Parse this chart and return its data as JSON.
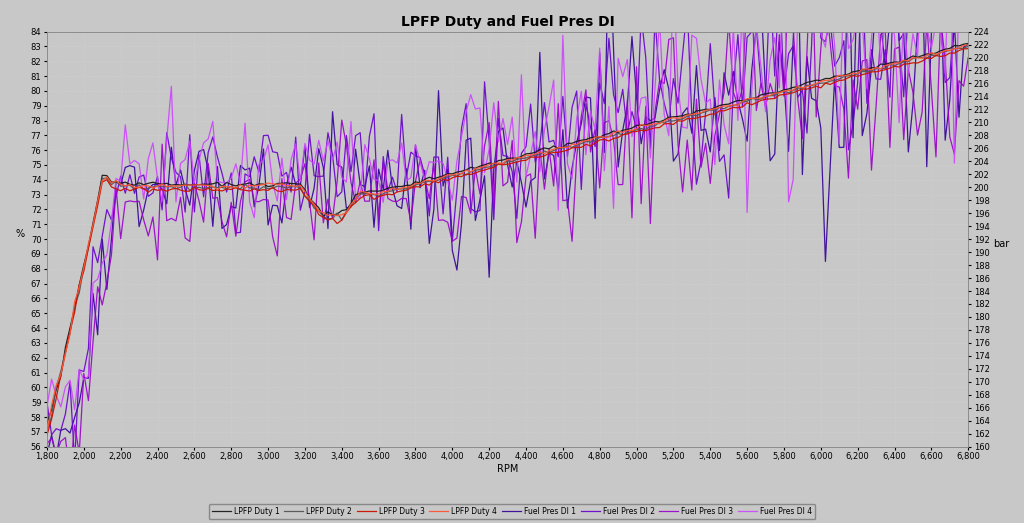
{
  "title": "LPFP Duty and Fuel Pres DI",
  "xlabel": "RPM",
  "ylabel_left": "%",
  "ylabel_right": "bar",
  "xlim": [
    1800,
    6800
  ],
  "ylim_left": [
    56,
    84
  ],
  "ylim_right": [
    160,
    224
  ],
  "background_color": "#c8c8c8",
  "grid_color": "#d8d8d8",
  "lpfp_colors": [
    "#1a1a1a",
    "#555555",
    "#cc1100",
    "#ff5533"
  ],
  "di_colors": [
    "#330099",
    "#6600cc",
    "#9900cc",
    "#cc44ff"
  ],
  "legend_labels": [
    "LPFP Duty 1",
    "LPFP Duty 2",
    "LPFP Duty 3",
    "LPFP Duty 4",
    "Fuel Pres DI 1",
    "Fuel Pres DI 2",
    "Fuel Pres DI 3",
    "Fuel Pres DI 4"
  ],
  "yticks_left": [
    56,
    57,
    58,
    59,
    60,
    61,
    62,
    63,
    64,
    65,
    66,
    67,
    68,
    69,
    70,
    71,
    72,
    73,
    74,
    75,
    76,
    77,
    78,
    79,
    80,
    81,
    82,
    83,
    84
  ],
  "yticks_right": [
    160,
    162,
    164,
    166,
    168,
    170,
    172,
    174,
    176,
    178,
    180,
    182,
    184,
    186,
    188,
    190,
    192,
    194,
    196,
    198,
    200,
    202,
    204,
    206,
    208,
    210,
    212,
    214,
    216,
    218,
    220,
    222,
    224
  ],
  "xticks": [
    1800,
    2000,
    2200,
    2400,
    2600,
    2800,
    3000,
    3200,
    3400,
    3600,
    3800,
    4000,
    4200,
    4400,
    4600,
    4800,
    5000,
    5200,
    5400,
    5600,
    5800,
    6000,
    6200,
    6400,
    6600,
    6800
  ]
}
